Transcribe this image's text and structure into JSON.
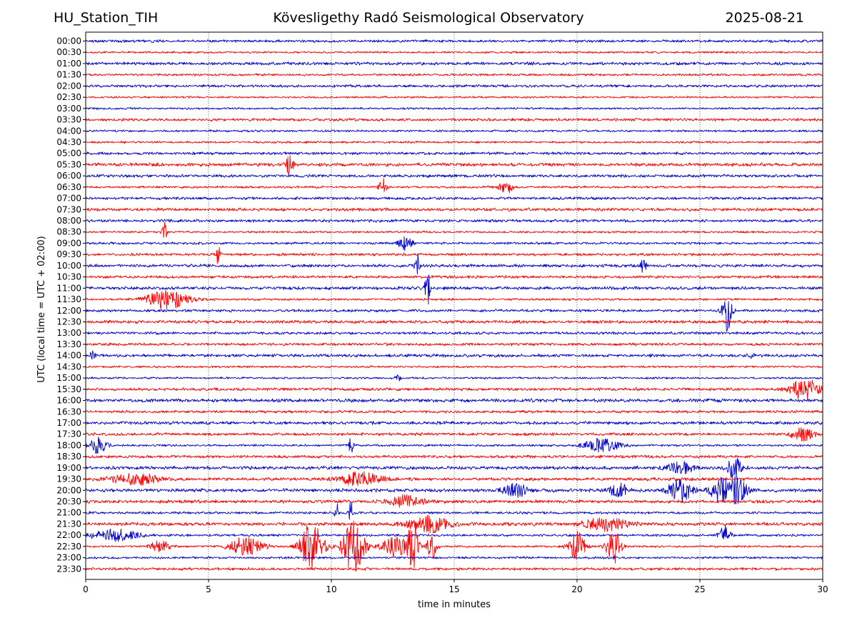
{
  "header": {
    "station": "HU_Station_TIH",
    "observatory": "Kövesligethy Radó Seismological Observatory",
    "date": "2025-08-21"
  },
  "colors": {
    "even_trace": "#0000cc",
    "odd_trace": "#ff0000",
    "grid": "#000000"
  },
  "chart_data": {
    "type": "line",
    "title": "Kövesligethy Radó Seismological Observatory",
    "xlabel": "time in minutes",
    "ylabel": "UTC (local time = UTC + 02:00)",
    "xlim": [
      0,
      30
    ],
    "xticks": [
      0,
      5,
      10,
      15,
      20,
      25,
      30
    ],
    "grid": "vertical dotted lines at x ticks",
    "row_labels": [
      "00:00",
      "00:30",
      "01:00",
      "01:30",
      "02:00",
      "02:30",
      "03:00",
      "03:30",
      "04:00",
      "04:30",
      "05:00",
      "05:30",
      "06:00",
      "06:30",
      "07:00",
      "07:30",
      "08:00",
      "08:30",
      "09:00",
      "09:30",
      "10:00",
      "10:30",
      "11:00",
      "11:30",
      "12:00",
      "12:30",
      "13:00",
      "13:30",
      "14:00",
      "14:30",
      "15:00",
      "15:30",
      "16:00",
      "16:30",
      "17:00",
      "17:30",
      "18:00",
      "18:30",
      "19:00",
      "19:30",
      "20:00",
      "20:30",
      "21:00",
      "21:30",
      "22:00",
      "22:30",
      "23:00",
      "23:30"
    ],
    "row_colors": "alternating blue (hour) / red (half hour)",
    "events": [
      {
        "row": "05:30",
        "t": 8.3,
        "amp": 1.0,
        "dur": 0.3
      },
      {
        "row": "06:30",
        "t": 12.1,
        "amp": 1.1,
        "dur": 0.3
      },
      {
        "row": "06:30",
        "t": 17.1,
        "amp": 0.6,
        "dur": 0.6
      },
      {
        "row": "08:30",
        "t": 3.2,
        "amp": 0.9,
        "dur": 0.2
      },
      {
        "row": "09:00",
        "t": 13.0,
        "amp": 0.6,
        "dur": 0.6
      },
      {
        "row": "09:30",
        "t": 5.4,
        "amp": 1.0,
        "dur": 0.2
      },
      {
        "row": "10:00",
        "t": 13.5,
        "amp": 1.1,
        "dur": 0.2
      },
      {
        "row": "10:00",
        "t": 22.7,
        "amp": 1.1,
        "dur": 0.2
      },
      {
        "row": "11:00",
        "t": 13.9,
        "amp": 2.4,
        "dur": 0.2
      },
      {
        "row": "11:30",
        "t": 3.3,
        "amp": 0.9,
        "dur": 1.8
      },
      {
        "row": "12:00",
        "t": 26.1,
        "amp": 1.9,
        "dur": 0.4
      },
      {
        "row": "14:00",
        "t": 0.3,
        "amp": 0.6,
        "dur": 0.2
      },
      {
        "row": "14:00",
        "t": 27.1,
        "amp": 0.7,
        "dur": 0.2
      },
      {
        "row": "15:00",
        "t": 12.7,
        "amp": 0.6,
        "dur": 0.2
      },
      {
        "row": "15:30",
        "t": 29.3,
        "amp": 1.0,
        "dur": 1.2
      },
      {
        "row": "17:30",
        "t": 29.2,
        "amp": 0.6,
        "dur": 1.0
      },
      {
        "row": "18:00",
        "t": 0.5,
        "amp": 0.7,
        "dur": 0.8
      },
      {
        "row": "18:00",
        "t": 10.8,
        "amp": 0.8,
        "dur": 0.2
      },
      {
        "row": "18:00",
        "t": 21.0,
        "amp": 0.6,
        "dur": 1.5
      },
      {
        "row": "19:00",
        "t": 26.4,
        "amp": 0.9,
        "dur": 0.7
      },
      {
        "row": "19:00",
        "t": 24.2,
        "amp": 0.5,
        "dur": 1.2
      },
      {
        "row": "19:30",
        "t": 11.2,
        "amp": 0.6,
        "dur": 1.8
      },
      {
        "row": "19:30",
        "t": 2.0,
        "amp": 0.5,
        "dur": 2.0
      },
      {
        "row": "20:00",
        "t": 17.5,
        "amp": 0.6,
        "dur": 1.0
      },
      {
        "row": "20:00",
        "t": 21.7,
        "amp": 0.6,
        "dur": 0.8
      },
      {
        "row": "20:00",
        "t": 24.2,
        "amp": 1.0,
        "dur": 1.0
      },
      {
        "row": "20:00",
        "t": 25.8,
        "amp": 1.1,
        "dur": 0.8
      },
      {
        "row": "20:00",
        "t": 26.5,
        "amp": 1.2,
        "dur": 0.8
      },
      {
        "row": "20:30",
        "t": 13.0,
        "amp": 0.5,
        "dur": 1.5
      },
      {
        "row": "21:00",
        "t": 10.2,
        "amp": 1.2,
        "dur": 0.15
      },
      {
        "row": "21:00",
        "t": 10.8,
        "amp": 1.3,
        "dur": 0.15
      },
      {
        "row": "21:30",
        "t": 14.0,
        "amp": 0.7,
        "dur": 1.8
      },
      {
        "row": "21:30",
        "t": 21.2,
        "amp": 0.6,
        "dur": 1.8
      },
      {
        "row": "22:00",
        "t": 26.0,
        "amp": 0.8,
        "dur": 0.5
      },
      {
        "row": "22:00",
        "t": 1.2,
        "amp": 0.5,
        "dur": 2.0
      },
      {
        "row": "22:30",
        "t": 9.2,
        "amp": 2.2,
        "dur": 1.0
      },
      {
        "row": "22:30",
        "t": 10.9,
        "amp": 2.4,
        "dur": 0.9
      },
      {
        "row": "22:30",
        "t": 13.3,
        "amp": 2.0,
        "dur": 0.5
      },
      {
        "row": "22:30",
        "t": 14.1,
        "amp": 1.4,
        "dur": 0.4
      },
      {
        "row": "22:30",
        "t": 20.0,
        "amp": 1.4,
        "dur": 0.7
      },
      {
        "row": "22:30",
        "t": 21.5,
        "amp": 1.6,
        "dur": 0.6
      },
      {
        "row": "22:30",
        "t": 6.5,
        "amp": 0.8,
        "dur": 1.5
      },
      {
        "row": "22:30",
        "t": 12.6,
        "amp": 0.8,
        "dur": 1.2
      },
      {
        "row": "22:30",
        "t": 3.0,
        "amp": 0.6,
        "dur": 0.8
      }
    ]
  }
}
